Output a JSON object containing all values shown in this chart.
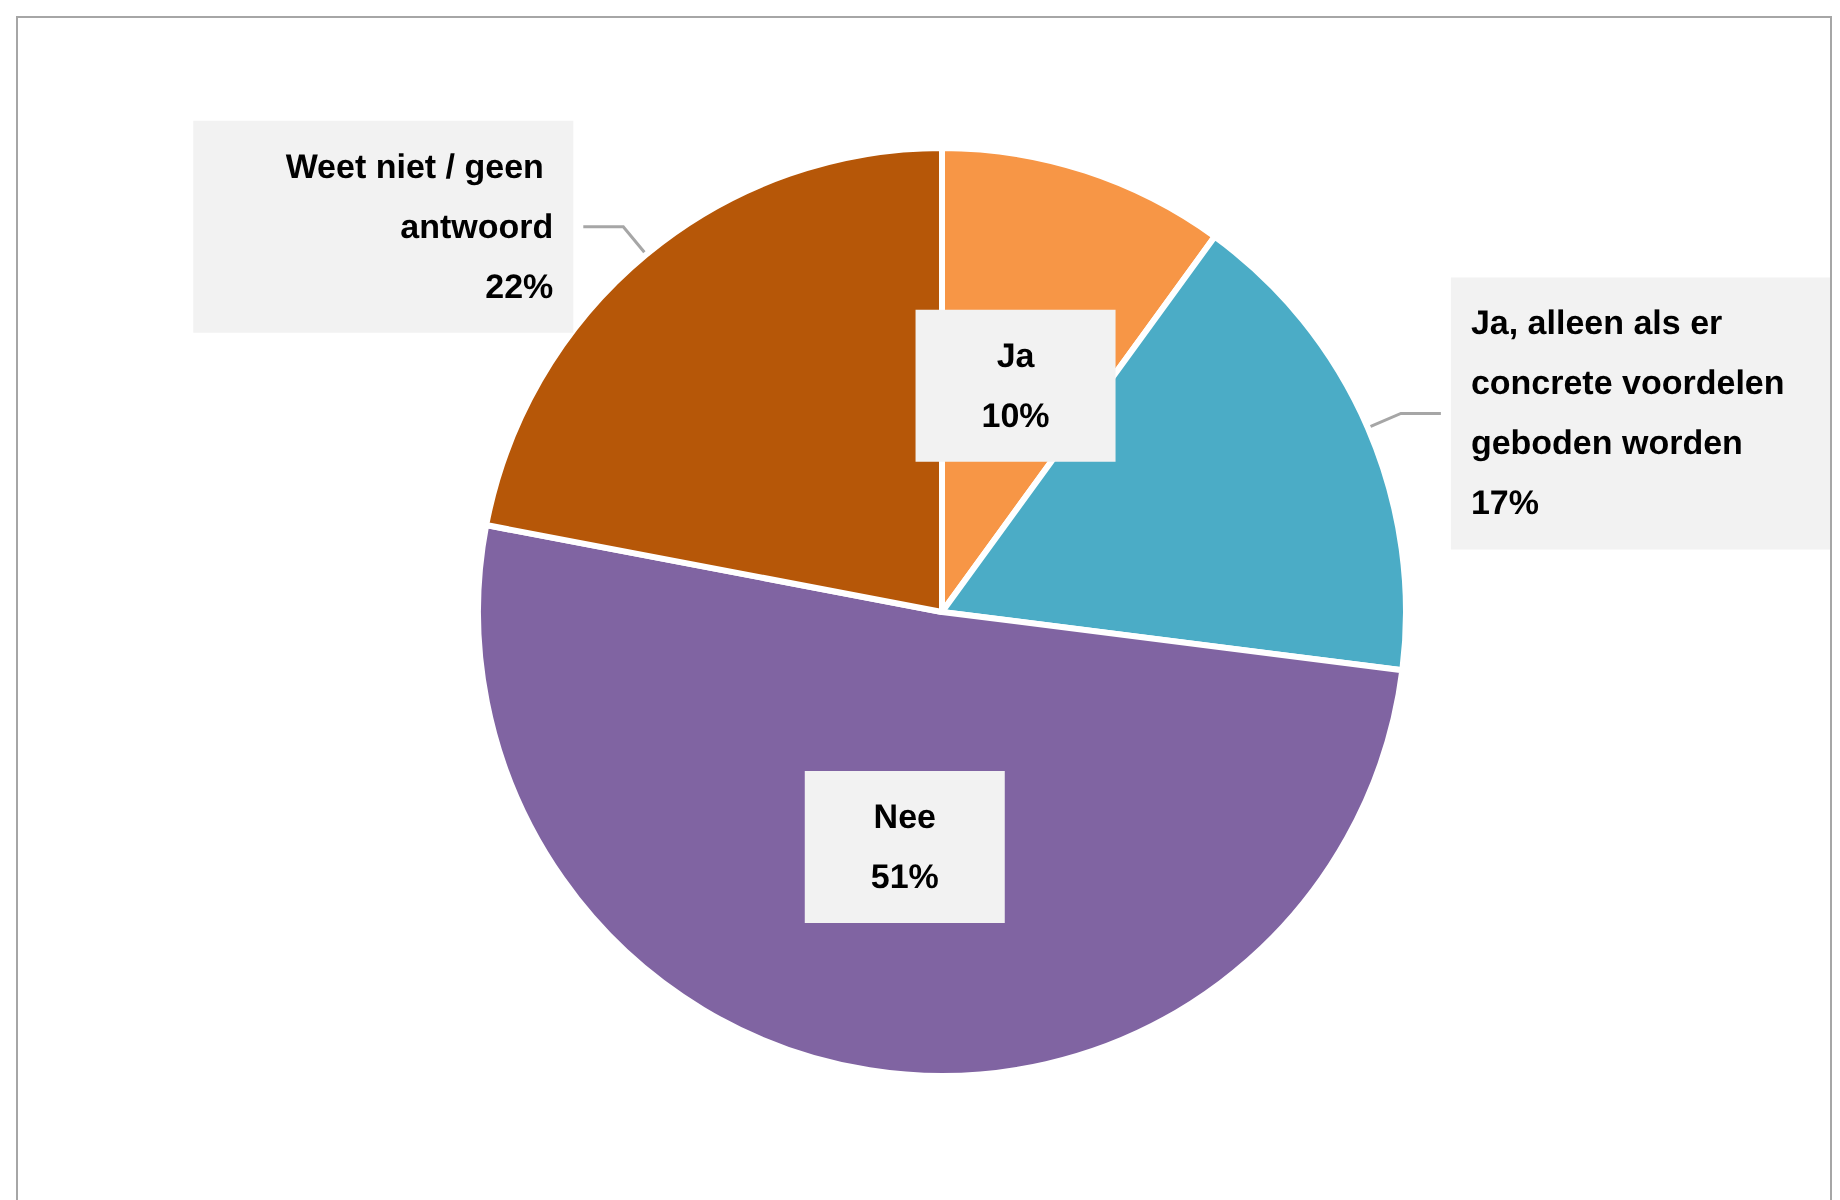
{
  "chart_data": {
    "type": "pie",
    "categories": [
      "Ja",
      "Ja, alleen als er concrete voordelen geboden worden",
      "Nee",
      "Weet niet / geen antwoord"
    ],
    "values": [
      10,
      17,
      51,
      22
    ],
    "value_labels": [
      "10%",
      "17%",
      "51%",
      "22%"
    ],
    "colors": [
      "#f79646",
      "#4bacc6",
      "#8064a2",
      "#b65708"
    ],
    "legend": false
  }
}
